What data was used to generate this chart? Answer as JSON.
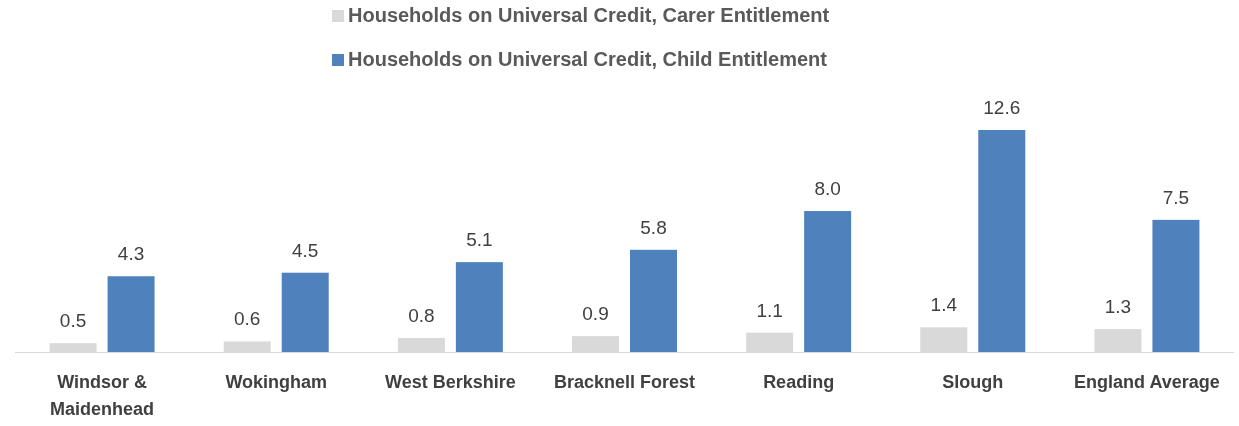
{
  "chart_data": {
    "type": "bar",
    "categories": [
      "Windsor & Maidenhead",
      "Wokingham",
      "West Berkshire",
      "Bracknell Forest",
      "Reading",
      "Slough",
      "England Average"
    ],
    "series": [
      {
        "name": "Households on Universal Credit, Carer Entitlement",
        "color": "#d9d9d9",
        "values": [
          0.5,
          0.6,
          0.8,
          0.9,
          1.1,
          1.4,
          1.3
        ],
        "value_labels": [
          "0.5",
          "0.6",
          "0.8",
          "0.9",
          "1.1",
          "1.4",
          "1.3"
        ]
      },
      {
        "name": "Households on Universal Credit, Child Entitlement",
        "color": "#4f81bd",
        "values": [
          4.3,
          4.5,
          5.1,
          5.8,
          8.0,
          12.6,
          7.5
        ],
        "value_labels": [
          "4.3",
          "4.5",
          "5.1",
          "5.8",
          "8.0",
          "12.6",
          "7.5"
        ]
      }
    ],
    "legend": "top"
  }
}
